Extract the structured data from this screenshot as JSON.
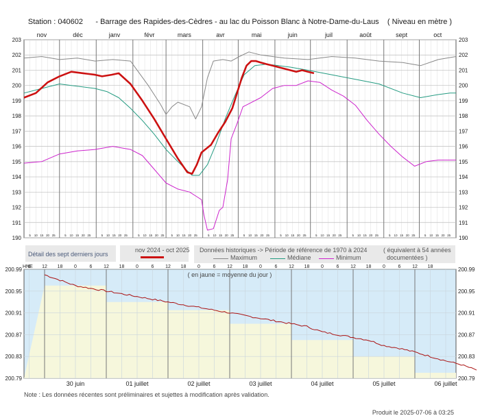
{
  "title": {
    "station": "Station : 040602",
    "name": "-    Barrage des Rapides-des-Cèdres - au lac du Poisson Blanc à Notre-Dame-du-Laus",
    "unit": "( Niveau en mètre )"
  },
  "legend": {
    "detail": "Détail des sept derniers jours",
    "current_period": "nov 2024 - oct 2025",
    "historic": "Données historiques -> Période de référence  de 1970 à 2024",
    "years": "( équivalent à 54 années",
    "years2": "documentées )",
    "maximum": "Maximum",
    "median": "Médiane",
    "minimum": "Minimum"
  },
  "colors": {
    "current": "#cc1111",
    "maximum": "#888888",
    "median": "#229a80",
    "minimum": "#cc22cc",
    "detail_line": "#aa1111",
    "detail_sky": "#d6ebf8",
    "detail_yellow": "#f6f7dc"
  },
  "note": "Note : Les données récentes sont préliminaires et sujettes à modification après validation.",
  "produced": "Produit le 2025-07-06 à 03:25",
  "chart_data": [
    {
      "type": "line",
      "months": [
        "nov",
        "déc",
        "janv",
        "févr",
        "mars",
        "avr",
        "mai",
        "juin",
        "juil",
        "août",
        "sept",
        "oct"
      ],
      "day_ticks": [
        "5",
        "10",
        "15",
        "20",
        "25"
      ],
      "ylim": [
        190,
        203
      ],
      "yticks": [
        "190",
        "191",
        "192",
        "193",
        "194",
        "195",
        "196",
        "197",
        "198",
        "199",
        "200",
        "201",
        "202",
        "203"
      ],
      "grid": true,
      "series": [
        {
          "name": "nov 2024 - oct 2025",
          "x": [
            0,
            10,
            20,
            30,
            40,
            50,
            60,
            66,
            74,
            80,
            90,
            100,
            110,
            120,
            130,
            138,
            142,
            146,
            150,
            158,
            164,
            170,
            176,
            180,
            184,
            188,
            192,
            196,
            200,
            205,
            210,
            215,
            220,
            225,
            230,
            235,
            240,
            245
          ],
          "y": [
            199.2,
            199.5,
            200.2,
            200.6,
            200.9,
            200.8,
            200.7,
            200.6,
            200.7,
            200.8,
            200.1,
            199.0,
            197.8,
            196.5,
            195.2,
            194.3,
            194.2,
            194.8,
            195.6,
            196.1,
            196.9,
            197.6,
            198.5,
            199.5,
            200.5,
            201.3,
            201.6,
            201.6,
            201.5,
            201.4,
            201.3,
            201.2,
            201.1,
            201.0,
            200.9,
            201.0,
            200.9,
            200.8
          ]
        },
        {
          "name": "Maximum",
          "x": [
            0,
            15,
            30,
            45,
            60,
            75,
            90,
            105,
            115,
            120,
            125,
            130,
            140,
            145,
            150,
            155,
            160,
            168,
            175,
            182,
            190,
            200,
            210,
            220,
            240,
            260,
            280,
            300,
            320,
            335,
            350,
            365
          ],
          "y": [
            201.8,
            201.9,
            201.7,
            201.8,
            201.6,
            201.7,
            201.6,
            200.0,
            198.8,
            198.1,
            198.6,
            198.9,
            198.6,
            197.8,
            198.6,
            200.5,
            201.6,
            201.7,
            201.6,
            201.9,
            202.2,
            202.0,
            201.9,
            201.8,
            201.7,
            201.9,
            201.8,
            201.6,
            201.5,
            201.3,
            201.7,
            201.9
          ]
        },
        {
          "name": "Médiane",
          "x": [
            0,
            15,
            30,
            40,
            50,
            60,
            70,
            80,
            90,
            100,
            110,
            120,
            130,
            138,
            142,
            148,
            155,
            162,
            170,
            178,
            186,
            195,
            205,
            215,
            225,
            240,
            260,
            280,
            300,
            320,
            335,
            350,
            360,
            365
          ],
          "y": [
            199.5,
            199.8,
            200.1,
            200.0,
            199.9,
            199.8,
            199.6,
            199.2,
            198.5,
            197.7,
            196.8,
            195.8,
            195.0,
            194.4,
            194.1,
            194.1,
            194.8,
            196.1,
            197.8,
            199.3,
            200.7,
            201.3,
            201.4,
            201.3,
            201.2,
            201.0,
            200.7,
            200.4,
            200.1,
            199.5,
            199.2,
            199.4,
            199.5,
            199.5
          ]
        },
        {
          "name": "Minimum",
          "x": [
            0,
            15,
            30,
            45,
            60,
            75,
            90,
            100,
            110,
            120,
            130,
            140,
            146,
            150,
            152,
            155,
            160,
            165,
            168,
            172,
            175,
            180,
            185,
            190,
            200,
            210,
            220,
            230,
            240,
            250,
            260,
            270,
            280,
            290,
            300,
            310,
            320,
            330,
            340,
            350,
            365
          ],
          "y": [
            194.9,
            195.0,
            195.5,
            195.7,
            195.8,
            196.0,
            195.8,
            195.4,
            194.5,
            193.6,
            193.2,
            193.0,
            192.7,
            192.5,
            191.5,
            190.5,
            190.6,
            191.8,
            192.0,
            193.8,
            196.5,
            197.5,
            198.6,
            198.8,
            199.2,
            199.8,
            200.0,
            200.0,
            200.3,
            200.2,
            199.7,
            199.3,
            198.7,
            197.7,
            196.8,
            196.0,
            195.3,
            194.7,
            195.0,
            195.1,
            195.1
          ]
        }
      ]
    },
    {
      "type": "line",
      "name": "Détail des sept derniers jours",
      "xlabel": "HNE",
      "days": [
        "30 juin",
        "01 juillet",
        "02 juillet",
        "03 juillet",
        "04 juillet",
        "05 juillet",
        "06 juillet"
      ],
      "hour_ticks": [
        "6",
        "12",
        "18",
        "0",
        "6",
        "12",
        "18",
        "0",
        "6",
        "12",
        "18",
        "0",
        "6",
        "12",
        "18",
        "0",
        "6",
        "12",
        "18",
        "0",
        "6",
        "12",
        "18",
        "0",
        "6",
        "12",
        "18"
      ],
      "ylim": [
        200.79,
        200.99
      ],
      "yticks": [
        "200.99",
        "200.95",
        "200.91",
        "200.87",
        "200.83",
        "200.79"
      ],
      "annotation": "( en jaune = moyenne du jour )",
      "daily_mean": {
        "days": [
          0,
          1,
          2,
          3,
          4,
          5,
          6
        ],
        "values": [
          200.96,
          200.93,
          200.915,
          200.89,
          200.86,
          200.83,
          200.8
        ]
      },
      "series": [
        {
          "name": "Niveau",
          "hours": [
            0,
            6,
            12,
            18,
            24,
            30,
            36,
            42,
            48,
            54,
            60,
            66,
            72,
            78,
            84,
            90,
            96,
            102,
            108,
            114,
            120,
            126,
            132,
            138,
            144,
            150,
            156,
            162,
            168
          ],
          "values": [
            200.98,
            200.97,
            200.96,
            200.955,
            200.95,
            200.945,
            200.94,
            200.935,
            200.93,
            200.925,
            200.92,
            200.915,
            200.91,
            200.905,
            200.9,
            200.895,
            200.89,
            200.885,
            200.875,
            200.87,
            200.865,
            200.86,
            200.85,
            200.845,
            200.838,
            200.83,
            200.822,
            200.815,
            200.805
          ]
        }
      ]
    }
  ]
}
